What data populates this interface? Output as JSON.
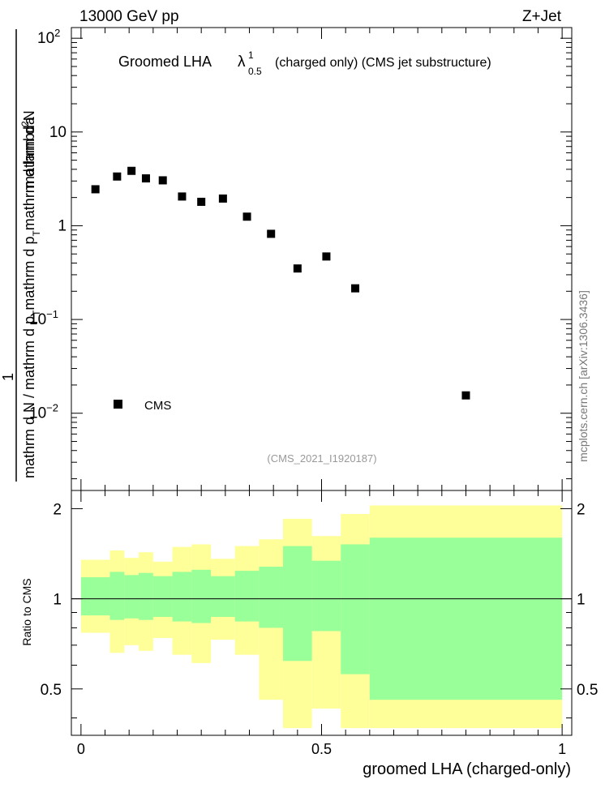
{
  "header": {
    "energy_label": "13000 GeV pp",
    "process_label": "Z+Jet"
  },
  "side_label": "mcplots.cern.ch [arXiv:1306.3436]",
  "chart_data": [
    {
      "type": "scatter",
      "title": {
        "prefix": "Groomed LHA",
        "lambda_symbol": "λ",
        "lambda_sup": "1",
        "lambda_sub": "0.5",
        "suffix": "(charged only) (CMS jet substructure)"
      },
      "ylabel": {
        "numerator": "1",
        "line1": "mathrm d",
        "line1_sup": "2",
        "line1_rest": "N",
        "line2a": "mathrm d p",
        "line2a_sub": "T",
        "line2b": "mathrm d lambda",
        "denominator_part1": "mathrm d",
        "denominator_part1_rest": "N / mathrm d p",
        "denominator_sub": "T",
        "denominator_part2": "mathrm d p",
        "denominator_part2_sub": "T",
        "denominator_part3": "mathrm d lambda"
      },
      "yscale": "log",
      "ylim": [
        0.0015,
        130
      ],
      "xlim": [
        -0.02,
        1.02
      ],
      "yticks": [
        {
          "base": "10",
          "exp": "2"
        },
        {
          "base": "10",
          "exp": ""
        },
        {
          "base": "1",
          "exp": ""
        },
        {
          "base": "10",
          "exp": "−1"
        },
        {
          "base": "10",
          "exp": "−2"
        }
      ],
      "series": [
        {
          "name": "CMS",
          "marker": "square",
          "color": "#000000",
          "x": [
            0.03,
            0.075,
            0.105,
            0.135,
            0.17,
            0.21,
            0.25,
            0.295,
            0.345,
            0.395,
            0.45,
            0.51,
            0.57,
            0.8
          ],
          "y": [
            2.45,
            3.35,
            3.85,
            3.2,
            3.05,
            2.05,
            1.8,
            1.95,
            1.25,
            0.82,
            0.35,
            0.47,
            0.215,
            0.0155
          ]
        }
      ],
      "legend": {
        "entries": [
          "CMS"
        ],
        "placement": "bottom-left"
      },
      "annotation": "(CMS_2021_I1920187)"
    },
    {
      "type": "area",
      "ylabel": "Ratio to CMS",
      "xlabel": "groomed LHA (charged-only)",
      "xlim": [
        -0.02,
        1.02
      ],
      "ylim": [
        0.35,
        2.3
      ],
      "xticks": [
        "0",
        "0.5",
        "1"
      ],
      "yticks": [
        "2",
        "1",
        "0.5"
      ],
      "reference_line": 1,
      "bins": [
        {
          "lo": 0.0,
          "hi": 0.06,
          "g_lo": 0.88,
          "g_hi": 1.18,
          "y_lo": 0.77,
          "y_hi": 1.35
        },
        {
          "lo": 0.06,
          "hi": 0.09,
          "g_lo": 0.85,
          "g_hi": 1.23,
          "y_lo": 0.66,
          "y_hi": 1.45
        },
        {
          "lo": 0.09,
          "hi": 0.12,
          "g_lo": 0.86,
          "g_hi": 1.2,
          "y_lo": 0.7,
          "y_hi": 1.37
        },
        {
          "lo": 0.12,
          "hi": 0.15,
          "g_lo": 0.85,
          "g_hi": 1.22,
          "y_lo": 0.67,
          "y_hi": 1.43
        },
        {
          "lo": 0.15,
          "hi": 0.19,
          "g_lo": 0.87,
          "g_hi": 1.19,
          "y_lo": 0.74,
          "y_hi": 1.33
        },
        {
          "lo": 0.19,
          "hi": 0.23,
          "g_lo": 0.84,
          "g_hi": 1.23,
          "y_lo": 0.65,
          "y_hi": 1.49
        },
        {
          "lo": 0.23,
          "hi": 0.27,
          "g_lo": 0.83,
          "g_hi": 1.25,
          "y_lo": 0.61,
          "y_hi": 1.52
        },
        {
          "lo": 0.27,
          "hi": 0.32,
          "g_lo": 0.87,
          "g_hi": 1.19,
          "y_lo": 0.73,
          "y_hi": 1.36
        },
        {
          "lo": 0.32,
          "hi": 0.37,
          "g_lo": 0.84,
          "g_hi": 1.24,
          "y_lo": 0.65,
          "y_hi": 1.5
        },
        {
          "lo": 0.37,
          "hi": 0.42,
          "g_lo": 0.8,
          "g_hi": 1.28,
          "y_lo": 0.46,
          "y_hi": 1.58
        },
        {
          "lo": 0.42,
          "hi": 0.48,
          "g_lo": 0.62,
          "g_hi": 1.5,
          "y_lo": 0.37,
          "y_hi": 1.85
        },
        {
          "lo": 0.48,
          "hi": 0.54,
          "g_lo": 0.78,
          "g_hi": 1.34,
          "y_lo": 0.43,
          "y_hi": 1.62
        },
        {
          "lo": 0.54,
          "hi": 0.6,
          "g_lo": 0.56,
          "g_hi": 1.52,
          "y_lo": 0.37,
          "y_hi": 1.92
        },
        {
          "lo": 0.6,
          "hi": 1.0,
          "g_lo": 0.46,
          "g_hi": 1.6,
          "y_lo": 0.37,
          "y_hi": 2.05
        }
      ]
    }
  ]
}
